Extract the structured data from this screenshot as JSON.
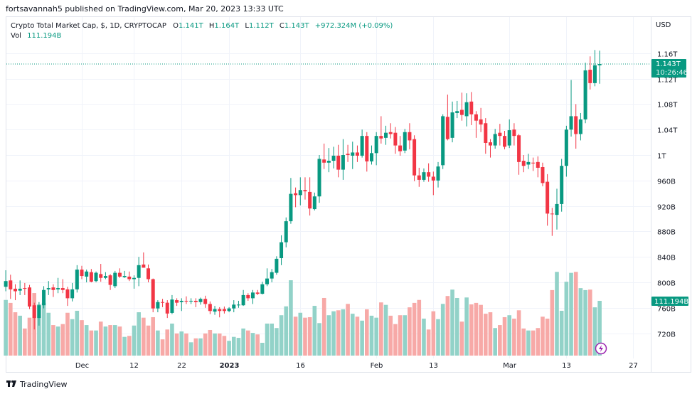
{
  "header": {
    "published": "fortsavannah5 published on TradingView.com, Mar 20, 2023 13:33 UTC"
  },
  "legend": {
    "symbol": "Crypto Total Market Cap, $, 1D, CRYPTOCAP",
    "o_label": "O",
    "o_value": "1.141T",
    "h_label": "H",
    "h_value": "1.164T",
    "l_label": "L",
    "l_value": "1.112T",
    "c_label": "C",
    "c_value": "1.143T",
    "change": "+972.324M (+0.09%)",
    "vol_label": "Vol",
    "vol_value": "111.194B"
  },
  "price_axis": {
    "currency": "USD",
    "last_price_label": "1.143T",
    "countdown": "10:26:46",
    "last_volume_label": "111.194B"
  },
  "footer": {
    "brand": "TradingView"
  },
  "colors": {
    "up": "#089981",
    "down": "#f23645",
    "up_volume": "#92d2c8",
    "down_volume": "#f7a9a7",
    "alert_icon": "#9c27b0"
  },
  "icons": {
    "alert": "lightning-icon",
    "logo": "tradingview-logo-icon"
  },
  "chart_data": {
    "type": "candlestick",
    "title": "Crypto Total Market Cap, $, 1D, CRYPTOCAP",
    "ylabel": "USD",
    "y_unit": "billions USD",
    "ylim": [
      700,
      1180
    ],
    "grid": true,
    "y_ticks": [
      {
        "value": 1160,
        "label": "1.16T"
      },
      {
        "value": 1120,
        "label": "1.12T"
      },
      {
        "value": 1080,
        "label": "1.08T"
      },
      {
        "value": 1040,
        "label": "1.04T"
      },
      {
        "value": 1000,
        "label": "1T"
      },
      {
        "value": 960,
        "label": "960B"
      },
      {
        "value": 920,
        "label": "920B"
      },
      {
        "value": 880,
        "label": "880B"
      },
      {
        "value": 840,
        "label": "840B"
      },
      {
        "value": 800,
        "label": "800B"
      },
      {
        "value": 760,
        "label": "760B"
      },
      {
        "value": 720,
        "label": "720B"
      }
    ],
    "x_ticks": [
      {
        "date": "2022-12-01",
        "label": "Dec",
        "bold": false
      },
      {
        "date": "2022-12-12",
        "label": "12",
        "bold": false
      },
      {
        "date": "2022-12-22",
        "label": "22",
        "bold": false
      },
      {
        "date": "2023-01-01",
        "label": "2023",
        "bold": true
      },
      {
        "date": "2023-01-16",
        "label": "16",
        "bold": false
      },
      {
        "date": "2023-02-01",
        "label": "Feb",
        "bold": false
      },
      {
        "date": "2023-02-13",
        "label": "13",
        "bold": false
      },
      {
        "date": "2023-03-01",
        "label": "Mar",
        "bold": false
      },
      {
        "date": "2023-03-13",
        "label": "13",
        "bold": false
      },
      {
        "date": "2023-03-27",
        "label": "27",
        "bold": false
      }
    ],
    "columns": [
      "date",
      "open",
      "high",
      "low",
      "close",
      "volume"
    ],
    "candles": [
      [
        "2022-11-15",
        793,
        819,
        786,
        802,
        113
      ],
      [
        "2022-11-16",
        803,
        812,
        774,
        789,
        107
      ],
      [
        "2022-11-17",
        790,
        797,
        772,
        786,
        88
      ],
      [
        "2022-11-18",
        787,
        803,
        780,
        790,
        81
      ],
      [
        "2022-11-19",
        791,
        799,
        780,
        790,
        55
      ],
      [
        "2022-11-20",
        792,
        796,
        758,
        762,
        77
      ],
      [
        "2022-11-21",
        764,
        768,
        726,
        744,
        127
      ],
      [
        "2022-11-22",
        744,
        769,
        732,
        764,
        104
      ],
      [
        "2022-11-23",
        764,
        794,
        759,
        788,
        107
      ],
      [
        "2022-11-24",
        789,
        802,
        780,
        791,
        87
      ],
      [
        "2022-11-25",
        792,
        797,
        777,
        788,
        62
      ],
      [
        "2022-11-26",
        789,
        807,
        783,
        791,
        59
      ],
      [
        "2022-11-27",
        791,
        805,
        783,
        788,
        64
      ],
      [
        "2022-11-28",
        789,
        793,
        763,
        775,
        87
      ],
      [
        "2022-11-29",
        775,
        799,
        770,
        789,
        74
      ],
      [
        "2022-11-30",
        789,
        827,
        784,
        820,
        91
      ],
      [
        "2022-12-01",
        820,
        826,
        805,
        810,
        72
      ],
      [
        "2022-12-02",
        809,
        820,
        800,
        817,
        62
      ],
      [
        "2022-12-03",
        816,
        821,
        800,
        801,
        51
      ],
      [
        "2022-12-04",
        802,
        817,
        800,
        815,
        51
      ],
      [
        "2022-12-05",
        813,
        829,
        801,
        807,
        69
      ],
      [
        "2022-12-06",
        807,
        816,
        805,
        810,
        59
      ],
      [
        "2022-12-07",
        811,
        813,
        788,
        796,
        62
      ],
      [
        "2022-12-08",
        794,
        818,
        791,
        815,
        62
      ],
      [
        "2022-12-09",
        815,
        822,
        807,
        809,
        59
      ],
      [
        "2022-12-10",
        808,
        818,
        807,
        810,
        38
      ],
      [
        "2022-12-11",
        809,
        817,
        802,
        805,
        40
      ],
      [
        "2022-12-12",
        805,
        811,
        790,
        807,
        61
      ],
      [
        "2022-12-13",
        807,
        840,
        794,
        827,
        88
      ],
      [
        "2022-12-14",
        828,
        847,
        823,
        823,
        77
      ],
      [
        "2022-12-15",
        822,
        828,
        800,
        805,
        61
      ],
      [
        "2022-12-16",
        805,
        806,
        753,
        759,
        78
      ],
      [
        "2022-12-17",
        759,
        772,
        753,
        769,
        51
      ],
      [
        "2022-12-18",
        769,
        774,
        761,
        768,
        33
      ],
      [
        "2022-12-19",
        768,
        772,
        744,
        751,
        53
      ],
      [
        "2022-12-20",
        752,
        780,
        750,
        773,
        65
      ],
      [
        "2022-12-21",
        772,
        775,
        763,
        768,
        45
      ],
      [
        "2022-12-22",
        769,
        775,
        755,
        771,
        49
      ],
      [
        "2022-12-23",
        771,
        778,
        766,
        770,
        45
      ],
      [
        "2022-12-24",
        770,
        775,
        766,
        771,
        27
      ],
      [
        "2022-12-25",
        771,
        775,
        761,
        769,
        35
      ],
      [
        "2022-12-26",
        769,
        776,
        765,
        774,
        35
      ],
      [
        "2022-12-27",
        774,
        779,
        760,
        766,
        45
      ],
      [
        "2022-12-28",
        766,
        770,
        750,
        755,
        52
      ],
      [
        "2022-12-29",
        754,
        763,
        749,
        758,
        45
      ],
      [
        "2022-12-30",
        758,
        761,
        745,
        755,
        45
      ],
      [
        "2022-12-31",
        758,
        762,
        751,
        755,
        40
      ],
      [
        "2023-01-01",
        755,
        761,
        753,
        759,
        30
      ],
      [
        "2023-01-02",
        759,
        772,
        753,
        765,
        38
      ],
      [
        "2023-01-03",
        764,
        771,
        760,
        765,
        36
      ],
      [
        "2023-01-04",
        764,
        788,
        763,
        780,
        55
      ],
      [
        "2023-01-05",
        780,
        783,
        771,
        775,
        51
      ],
      [
        "2023-01-06",
        775,
        788,
        766,
        784,
        46
      ],
      [
        "2023-01-07",
        784,
        788,
        780,
        782,
        43
      ],
      [
        "2023-01-08",
        782,
        801,
        781,
        797,
        26
      ],
      [
        "2023-01-09",
        797,
        822,
        794,
        806,
        65
      ],
      [
        "2023-01-10",
        806,
        821,
        800,
        816,
        65
      ],
      [
        "2023-01-11",
        815,
        841,
        812,
        837,
        56
      ],
      [
        "2023-01-12",
        838,
        874,
        827,
        863,
        82
      ],
      [
        "2023-01-13",
        863,
        902,
        855,
        896,
        100
      ],
      [
        "2023-01-14",
        896,
        964,
        892,
        939,
        153
      ],
      [
        "2023-01-15",
        940,
        949,
        918,
        937,
        79
      ],
      [
        "2023-01-16",
        937,
        965,
        921,
        945,
        87
      ],
      [
        "2023-01-17",
        945,
        965,
        930,
        943,
        77
      ],
      [
        "2023-01-18",
        942,
        965,
        905,
        916,
        78
      ],
      [
        "2023-01-19",
        915,
        941,
        913,
        935,
        101
      ],
      [
        "2023-01-20",
        935,
        1000,
        925,
        994,
        66
      ],
      [
        "2023-01-21",
        993,
        1018,
        978,
        988,
        117
      ],
      [
        "2023-01-22",
        988,
        1011,
        973,
        991,
        82
      ],
      [
        "2023-01-23",
        991,
        1013,
        979,
        999,
        90
      ],
      [
        "2023-01-24",
        999,
        1016,
        965,
        977,
        92
      ],
      [
        "2023-01-25",
        977,
        1025,
        961,
        1000,
        94
      ],
      [
        "2023-01-26",
        1002,
        1016,
        989,
        1000,
        105
      ],
      [
        "2023-01-27",
        999,
        1021,
        978,
        1004,
        85
      ],
      [
        "2023-01-28",
        1004,
        1015,
        989,
        999,
        79
      ],
      [
        "2023-01-29",
        999,
        1040,
        996,
        1030,
        71
      ],
      [
        "2023-01-30",
        1030,
        1036,
        974,
        990,
        94
      ],
      [
        "2023-01-31",
        990,
        1015,
        985,
        1003,
        81
      ],
      [
        "2023-02-01",
        1003,
        1036,
        984,
        1030,
        77
      ],
      [
        "2023-02-02",
        1030,
        1061,
        1018,
        1026,
        108
      ],
      [
        "2023-02-03",
        1027,
        1046,
        1016,
        1035,
        103
      ],
      [
        "2023-02-04",
        1036,
        1050,
        1026,
        1033,
        81
      ],
      [
        "2023-02-05",
        1035,
        1044,
        1002,
        1015,
        64
      ],
      [
        "2023-02-06",
        1015,
        1030,
        999,
        1006,
        82
      ],
      [
        "2023-02-07",
        1007,
        1041,
        1003,
        1036,
        82
      ],
      [
        "2023-02-08",
        1036,
        1050,
        1009,
        1023,
        98
      ],
      [
        "2023-02-09",
        1025,
        1031,
        959,
        968,
        107
      ],
      [
        "2023-02-10",
        968,
        980,
        950,
        961,
        113
      ],
      [
        "2023-02-11",
        961,
        979,
        958,
        973,
        75
      ],
      [
        "2023-02-12",
        973,
        987,
        958,
        966,
        53
      ],
      [
        "2023-02-13",
        966,
        974,
        937,
        960,
        90
      ],
      [
        "2023-02-14",
        960,
        989,
        949,
        982,
        74
      ],
      [
        "2023-02-15",
        984,
        1064,
        978,
        1061,
        105
      ],
      [
        "2023-02-16",
        1060,
        1095,
        1023,
        1025,
        121
      ],
      [
        "2023-02-17",
        1027,
        1084,
        1020,
        1067,
        134
      ],
      [
        "2023-02-18",
        1066,
        1085,
        1058,
        1069,
        117
      ],
      [
        "2023-02-19",
        1071,
        1098,
        1054,
        1063,
        69
      ],
      [
        "2023-02-20",
        1061,
        1097,
        1045,
        1083,
        118
      ],
      [
        "2023-02-21",
        1084,
        1099,
        1047,
        1064,
        104
      ],
      [
        "2023-02-22",
        1064,
        1069,
        1027,
        1054,
        107
      ],
      [
        "2023-02-23",
        1056,
        1074,
        1036,
        1048,
        103
      ],
      [
        "2023-02-24",
        1050,
        1058,
        1002,
        1019,
        85
      ],
      [
        "2023-02-25",
        1020,
        1025,
        996,
        1015,
        88
      ],
      [
        "2023-02-26",
        1015,
        1041,
        1010,
        1033,
        56
      ],
      [
        "2023-02-27",
        1035,
        1049,
        1015,
        1030,
        62
      ],
      [
        "2023-02-28",
        1030,
        1038,
        1009,
        1013,
        78
      ],
      [
        "2023-03-01",
        1015,
        1056,
        1011,
        1039,
        82
      ],
      [
        "2023-03-02",
        1040,
        1050,
        1015,
        1030,
        75
      ],
      [
        "2023-03-03",
        1031,
        1033,
        969,
        989,
        92
      ],
      [
        "2023-03-04",
        991,
        1000,
        973,
        983,
        55
      ],
      [
        "2023-03-05",
        985,
        1002,
        978,
        989,
        51
      ],
      [
        "2023-03-06",
        988,
        996,
        975,
        987,
        51
      ],
      [
        "2023-03-07",
        989,
        998,
        965,
        980,
        56
      ],
      [
        "2023-03-08",
        981,
        988,
        951,
        956,
        79
      ],
      [
        "2023-03-09",
        958,
        970,
        889,
        908,
        75
      ],
      [
        "2023-03-10",
        908,
        917,
        873,
        907,
        133
      ],
      [
        "2023-03-11",
        906,
        947,
        883,
        923,
        170
      ],
      [
        "2023-03-12",
        923,
        994,
        911,
        983,
        91
      ],
      [
        "2023-03-13",
        983,
        1046,
        966,
        1040,
        150
      ],
      [
        "2023-03-14",
        1040,
        1118,
        1029,
        1061,
        168
      ],
      [
        "2023-03-15",
        1061,
        1080,
        1010,
        1033,
        170
      ],
      [
        "2023-03-16",
        1033,
        1066,
        1023,
        1056,
        137
      ],
      [
        "2023-03-17",
        1056,
        1145,
        1050,
        1133,
        133
      ],
      [
        "2023-03-18",
        1134,
        1155,
        1103,
        1113,
        134
      ],
      [
        "2023-03-19",
        1113,
        1165,
        1108,
        1141,
        98
      ],
      [
        "2023-03-20",
        1141,
        1164,
        1112,
        1143,
        111.194
      ]
    ]
  }
}
